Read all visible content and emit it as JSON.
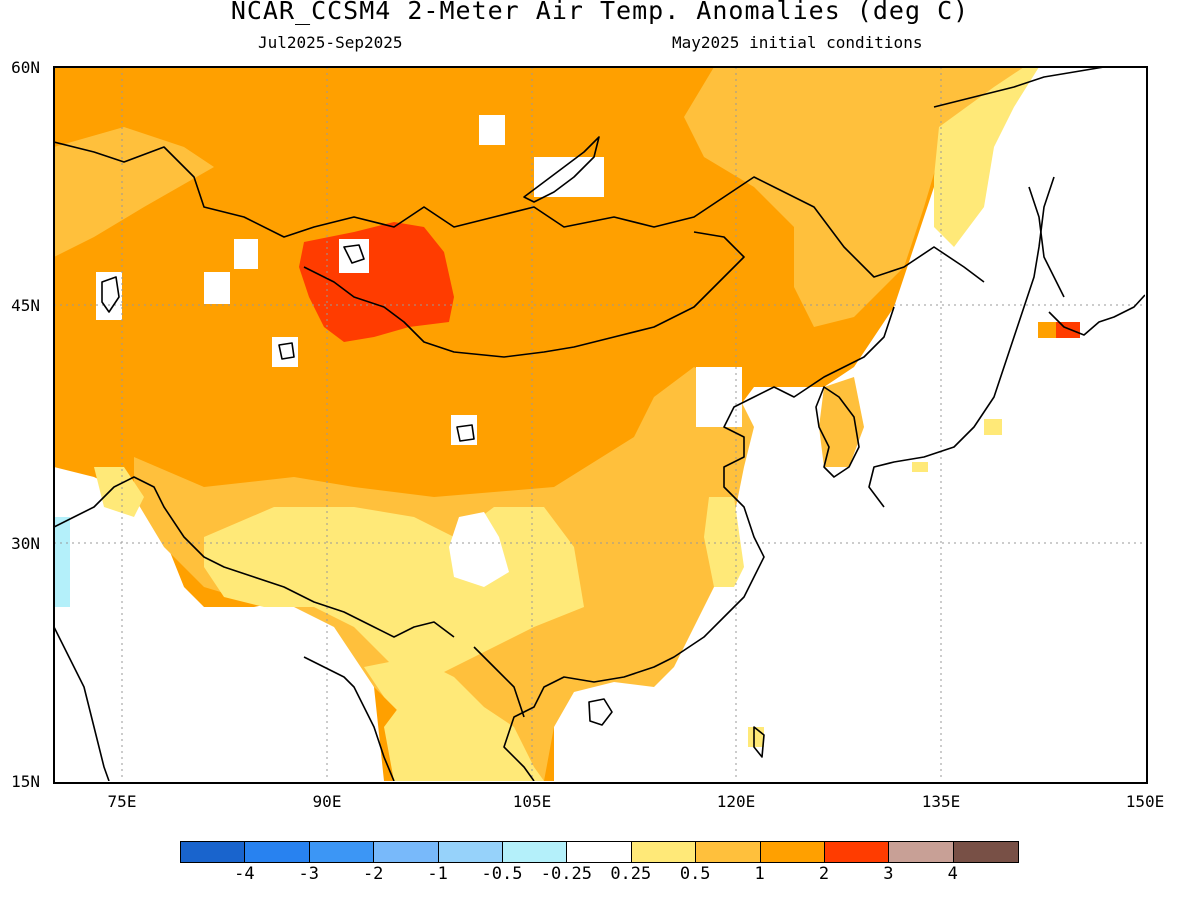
{
  "title": "NCAR_CCSM4 2-Meter Air Temp. Anomalies (deg C)",
  "subtitle_left": "Jul2025-Sep2025",
  "subtitle_right": "May2025 initial conditions",
  "axes": {
    "lat_labels": [
      "60N",
      "45N",
      "30N",
      "15N"
    ],
    "lon_labels": [
      "75E",
      "90E",
      "105E",
      "120E",
      "135E",
      "150E"
    ],
    "lat_range": [
      15,
      60
    ],
    "lon_range": [
      70,
      150
    ],
    "grid": "dotted"
  },
  "colorbar": {
    "colors": [
      "#1964cd",
      "#2882f0",
      "#3c96f5",
      "#78b9fa",
      "#96d2fa",
      "#b4f0fa",
      "#ffffff",
      "#ffe978",
      "#ffc03c",
      "#ffa000",
      "#ff3c00",
      "#c8a096",
      "#785046"
    ],
    "labels": [
      "-4",
      "-3",
      "-2",
      "-1",
      "-0.5",
      "-0.25",
      "0.25",
      "0.5",
      "1",
      "2",
      "3",
      "4"
    ]
  },
  "legend_colors": {
    "0.25-0.5": "#ffe978",
    "0.5-1": "#ffc03c",
    "1-2": "#ffa000",
    "2-3": "#ff3c00",
    "-0.5--0.25": "#b4f0fa",
    "land_outline": "#000000"
  }
}
